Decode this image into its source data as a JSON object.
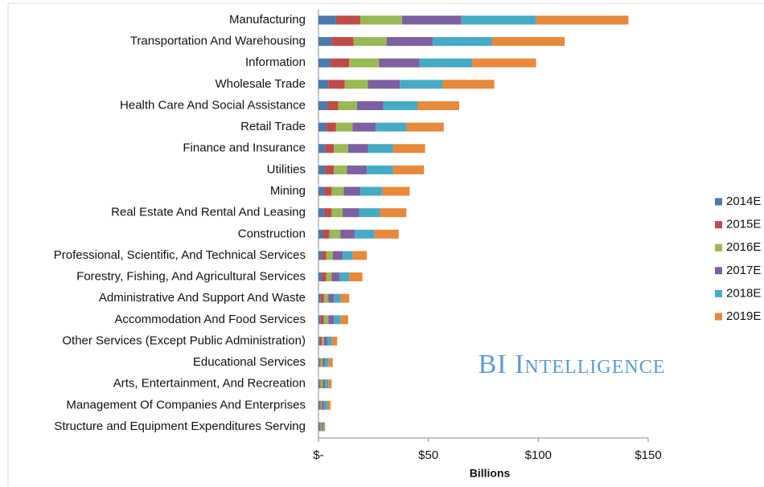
{
  "chart_data": {
    "type": "stacked-barh",
    "xlabel": "Billions",
    "annotation": "BI Intelligence",
    "categories": [
      "Manufacturing",
      "Transportation And Warehousing",
      "Information",
      "Wholesale Trade",
      "Health Care And Social Assistance",
      "Retail Trade",
      "Finance and Insurance",
      "Utilities",
      "Mining",
      "Real Estate And Rental And Leasing",
      "Construction",
      "Professional, Scientific, And Technical Services",
      "Forestry, Fishing, And Agricultural Services",
      "Administrative And Support And Waste",
      "Accommodation And Food Services",
      "Other Services (Except Public Administration)",
      "Educational Services",
      "Arts, Entertainment, And Recreation",
      "Management Of Companies And Enterprises",
      "Structure and Equipment Expenditures Serving"
    ],
    "series": [
      {
        "name": "2014E",
        "color": "#4a7ab0",
        "values": [
          8,
          6,
          5.5,
          4.5,
          4,
          3.5,
          3,
          3,
          2.5,
          2.5,
          2,
          1.5,
          1.5,
          1,
          1,
          0.5,
          0.5,
          0.5,
          0.5,
          0.5
        ]
      },
      {
        "name": "2015E",
        "color": "#be4b48",
        "values": [
          11,
          10,
          8.5,
          7.5,
          5,
          4.5,
          4,
          4,
          3.5,
          3.5,
          3,
          2,
          2,
          1.5,
          1.5,
          1,
          0.5,
          0.5,
          0.5,
          0.5
        ]
      },
      {
        "name": "2016E",
        "color": "#98b954",
        "values": [
          19,
          15,
          13.5,
          10.5,
          8.5,
          7.5,
          6.5,
          6,
          5.5,
          5,
          5,
          3,
          2.5,
          2,
          2,
          1,
          1,
          1,
          0.5,
          0.5
        ]
      },
      {
        "name": "2017E",
        "color": "#7d60a0",
        "values": [
          27,
          21,
          18.5,
          14.5,
          12,
          10.5,
          9,
          9,
          7.5,
          7.5,
          6.5,
          4.5,
          3.5,
          2.5,
          2.5,
          1.5,
          1,
          1,
          1,
          0.5
        ]
      },
      {
        "name": "2018E",
        "color": "#46aac5",
        "values": [
          34,
          27,
          24,
          19.5,
          15.5,
          14,
          11.5,
          12,
          10,
          9.5,
          9,
          4.5,
          4.5,
          3,
          3,
          2,
          1.5,
          1.5,
          1.5,
          0.5
        ]
      },
      {
        "name": "2019E",
        "color": "#e8883a",
        "values": [
          42,
          33,
          29,
          23.5,
          19,
          17,
          14.5,
          14,
          12.5,
          12,
          11,
          6.5,
          6,
          4,
          3.5,
          2.5,
          2,
          1.5,
          1.5,
          0.5
        ]
      }
    ],
    "xlim": [
      0,
      150
    ],
    "xticks": [
      {
        "value": 0,
        "label": "$-"
      },
      {
        "value": 50,
        "label": "$50"
      },
      {
        "value": 100,
        "label": "$100"
      },
      {
        "value": 150,
        "label": "$150"
      }
    ],
    "legend": "right"
  }
}
